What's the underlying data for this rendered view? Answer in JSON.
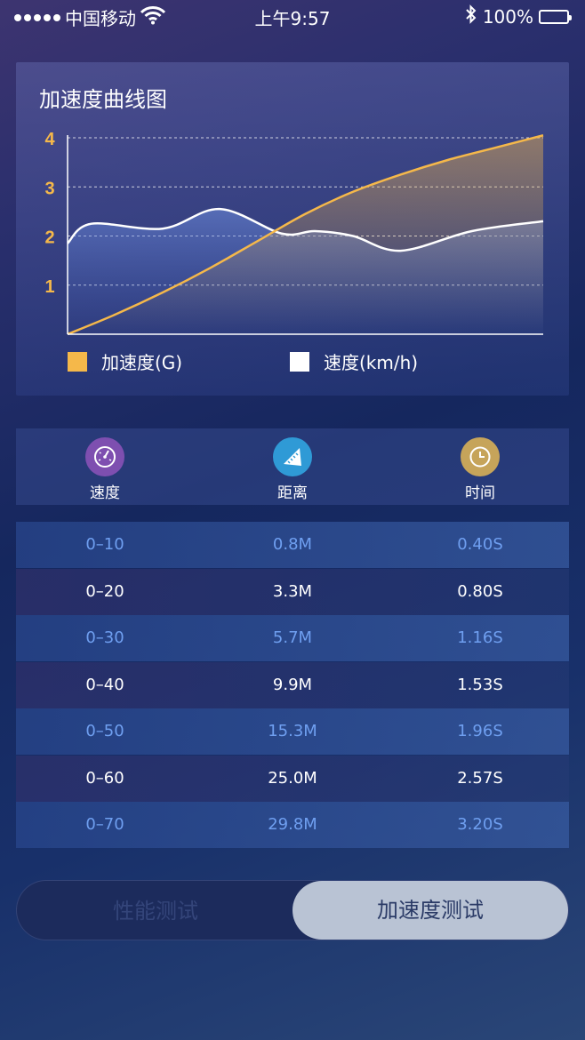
{
  "status_bar": {
    "carrier": "中国移动",
    "time": "上午9:57",
    "battery": "100%",
    "battery_level": 1.0
  },
  "chart_card": {
    "title": "加速度曲线图"
  },
  "chart_data": {
    "type": "line",
    "title": "加速度曲线图",
    "yticks": [
      "1",
      "2",
      "3",
      "4"
    ],
    "ylim": [
      0,
      4
    ],
    "xlim": [
      0,
      10
    ],
    "grid": true,
    "legend_position": "bottom",
    "series": [
      {
        "name": "加速度(G)",
        "color": "#f5b84a",
        "x": [
          0,
          1,
          2,
          3,
          4,
          5,
          6,
          7,
          8,
          9,
          10
        ],
        "values": [
          0.0,
          0.4,
          0.85,
          1.35,
          1.9,
          2.45,
          2.9,
          3.25,
          3.55,
          3.8,
          4.05
        ]
      },
      {
        "name": "速度(km/h)",
        "color": "#ffffff",
        "x": [
          0,
          0.5,
          2.0,
          3.2,
          4.5,
          5.2,
          6.0,
          7.0,
          8.5,
          10.0
        ],
        "values": [
          1.85,
          2.25,
          2.15,
          2.55,
          2.05,
          2.1,
          2.0,
          1.7,
          2.1,
          2.3
        ]
      }
    ]
  },
  "tabs": [
    {
      "label": "速度",
      "icon": "speedometer-icon",
      "color": "#7e4fb0"
    },
    {
      "label": "距离",
      "icon": "ruler-icon",
      "color": "#2f9ad6"
    },
    {
      "label": "时间",
      "icon": "clock-icon",
      "color": "#c6a45a"
    }
  ],
  "table": {
    "rows": [
      {
        "speed": "0–10",
        "distance": "0.8M",
        "time": "0.40S"
      },
      {
        "speed": "0–20",
        "distance": "3.3M",
        "time": "0.80S"
      },
      {
        "speed": "0–30",
        "distance": "5.7M",
        "time": "1.16S"
      },
      {
        "speed": "0–40",
        "distance": "9.9M",
        "time": "1.53S"
      },
      {
        "speed": "0–50",
        "distance": "15.3M",
        "time": "1.96S"
      },
      {
        "speed": "0–60",
        "distance": "25.0M",
        "time": "2.57S"
      },
      {
        "speed": "0–70",
        "distance": "29.8M",
        "time": "3.20S"
      }
    ]
  },
  "segment": {
    "left_label": "性能测试",
    "right_label": "加速度测试",
    "selected": "right"
  }
}
